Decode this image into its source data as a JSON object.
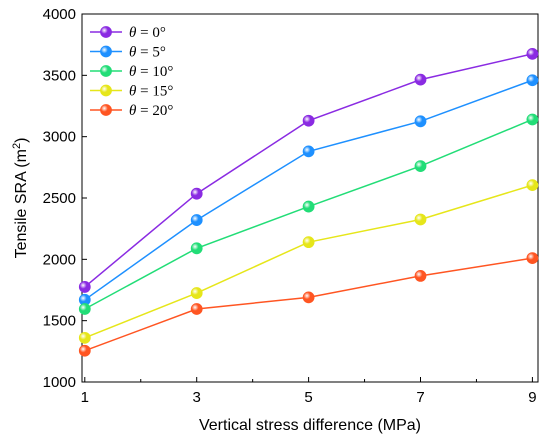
{
  "chart_data": {
    "type": "line",
    "xlabel": "Vertical stress difference (MPa)",
    "ylabel": "Tensile SRA (m",
    "ylabel_sup": "2",
    "ylabel_close": ")",
    "xlim": [
      0.95,
      9.1
    ],
    "ylim": [
      1000,
      4000
    ],
    "xticks": [
      1,
      3,
      5,
      7,
      9
    ],
    "yticks": [
      1000,
      1500,
      2000,
      2500,
      3000,
      3500,
      4000
    ],
    "grid": false,
    "legend_position": "top-left",
    "x": [
      1,
      3,
      5,
      7,
      9
    ],
    "series": [
      {
        "name": "θ = 0°",
        "symbol": "θ",
        "rest": " = 0°",
        "color": "#8a2be2",
        "values": [
          1775,
          2535,
          3130,
          3465,
          3675
        ]
      },
      {
        "name": "θ = 5°",
        "symbol": "θ",
        "rest": " = 5°",
        "color": "#1e90ff",
        "values": [
          1670,
          2320,
          2880,
          3125,
          3460
        ]
      },
      {
        "name": "θ = 10°",
        "symbol": "θ",
        "rest": " = 10°",
        "color": "#22dd77",
        "values": [
          1595,
          2090,
          2430,
          2760,
          3140
        ]
      },
      {
        "name": "θ = 15°",
        "symbol": "θ",
        "rest": " = 15°",
        "color": "#e6e61a",
        "values": [
          1360,
          1725,
          2140,
          2325,
          2605
        ]
      },
      {
        "name": "θ = 20°",
        "symbol": "θ",
        "rest": " = 20°",
        "color": "#ff5522",
        "values": [
          1255,
          1595,
          1690,
          1865,
          2010
        ]
      }
    ]
  }
}
